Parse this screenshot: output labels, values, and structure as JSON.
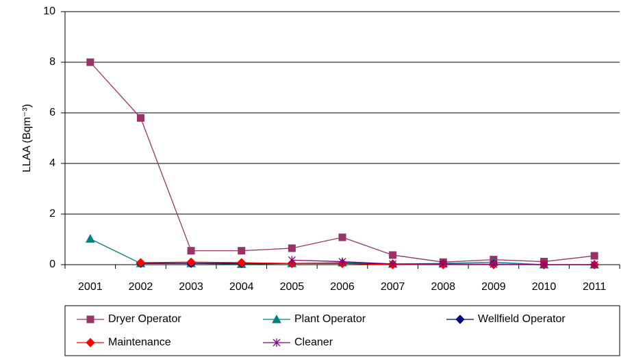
{
  "chart_data": {
    "type": "line",
    "y_label": "LLAA (Bqm⁻³)",
    "categories": [
      "2001",
      "2002",
      "2003",
      "2004",
      "2005",
      "2006",
      "2007",
      "2008",
      "2009",
      "2010",
      "2011"
    ],
    "series": [
      {
        "name": "Dryer Operator",
        "color": "#993366",
        "marker": "square",
        "values": [
          8,
          5.8,
          0.55,
          0.55,
          0.65,
          1.08,
          0.38,
          0.1,
          0.2,
          0.12,
          0.35
        ]
      },
      {
        "name": "Plant Operator",
        "color": "#008080",
        "marker": "triangle",
        "values": [
          1.02,
          0.05,
          0.05,
          0.02,
          0.05,
          0.08,
          0.03,
          0.05,
          0.1,
          0,
          0
        ]
      },
      {
        "name": "Wellfield Operator",
        "color": "#000080",
        "marker": "diamond",
        "values": [
          null,
          0.05,
          0.05,
          0.05,
          0.05,
          0.05,
          0.02,
          0.02,
          0.02,
          0,
          0
        ]
      },
      {
        "name": "Maintenance",
        "color": "#ff0000",
        "marker": "diamond",
        "values": [
          null,
          0.08,
          0.1,
          0.08,
          0.05,
          0.05,
          0,
          0,
          0,
          0,
          0
        ]
      },
      {
        "name": "Cleaner",
        "color": "#800080",
        "marker": "asterisk",
        "values": [
          null,
          null,
          null,
          null,
          0.18,
          0.12,
          0.03,
          0.02,
          0.02,
          0,
          0
        ]
      }
    ],
    "ylim": [
      0,
      10
    ],
    "yticks": [
      0,
      2,
      4,
      6,
      8,
      10
    ],
    "grid": true,
    "legend": "bottom"
  }
}
